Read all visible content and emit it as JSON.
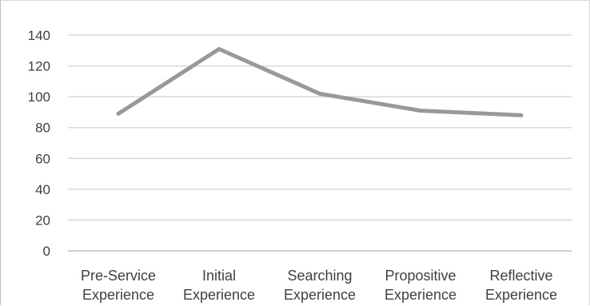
{
  "chart_data": {
    "type": "line",
    "title": "",
    "xlabel": "",
    "ylabel": "",
    "ylim": [
      0,
      140
    ],
    "yticks": [
      0,
      20,
      40,
      60,
      80,
      100,
      120,
      140
    ],
    "grid": true,
    "legend": "none",
    "categories": [
      [
        "Pre-Service",
        "Experience"
      ],
      [
        "Initial",
        "Experience"
      ],
      [
        "Searching",
        "Experience"
      ],
      [
        "Propositive",
        "Experience"
      ],
      [
        "Reflective",
        "Experience"
      ]
    ],
    "series": [
      {
        "values": [
          89,
          131,
          102,
          91,
          88
        ],
        "color": "#999999"
      }
    ],
    "colors": {
      "grid": "#d9d9d9",
      "axis": "#bfbfbf",
      "text": "#404040"
    }
  }
}
